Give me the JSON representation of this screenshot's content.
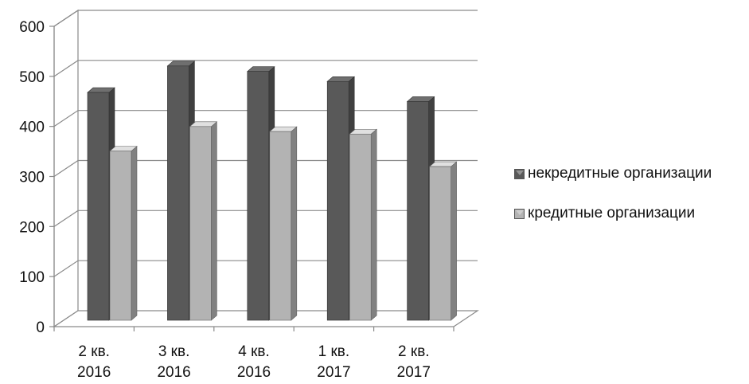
{
  "chart_data": {
    "type": "bar",
    "title": "",
    "xlabel": "",
    "ylabel": "",
    "ylim": [
      0,
      600
    ],
    "yticks": [
      0,
      100,
      200,
      300,
      400,
      500,
      600
    ],
    "grid": true,
    "legend_position": "right",
    "style": "3d-clustered-column",
    "categories": [
      [
        "2 кв.",
        "2016"
      ],
      [
        "3 кв.",
        "2016"
      ],
      [
        "4 кв.",
        "2016"
      ],
      [
        "1 кв.",
        "2017"
      ],
      [
        "2 кв.",
        "2017"
      ]
    ],
    "series": [
      {
        "name": "некредитные организации",
        "color": "#595959",
        "values": [
          455,
          508,
          497,
          477,
          437
        ]
      },
      {
        "name": "кредитные организации",
        "color": "#b3b3b3",
        "values": [
          338,
          387,
          377,
          372,
          307
        ]
      }
    ]
  }
}
